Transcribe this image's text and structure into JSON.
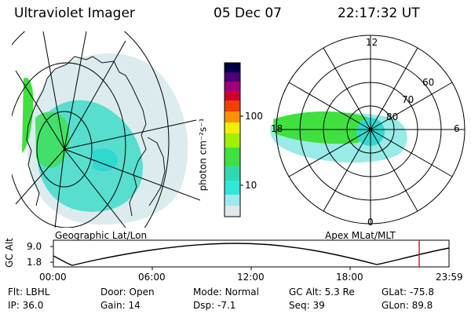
{
  "header": {
    "title": "Ultraviolet Imager",
    "date": "05 Dec 07",
    "time": "22:17:32 UT"
  },
  "geo_panel": {
    "label": "Geographic Lat/Lon"
  },
  "polar_panel": {
    "label": "Apex MLat/MLT",
    "mlt_labels": [
      "12",
      "18",
      "6",
      "0"
    ],
    "mlat_labels": [
      "60",
      "70",
      "80"
    ]
  },
  "colorbar": {
    "unit": "photon cm⁻²s⁻¹",
    "ticks": [
      "100",
      "10"
    ],
    "scale": "log",
    "colors": [
      "#000044",
      "#4a0070",
      "#a0007a",
      "#d00030",
      "#f04000",
      "#ff9000",
      "#f0f000",
      "#a0f000",
      "#30d830",
      "#30e8d0",
      "#a0e8f0",
      "#e8e8e8"
    ]
  },
  "altitude_plot": {
    "ylabel": "GC Alt",
    "yticks": [
      "9.0",
      "1.8"
    ],
    "xticks": [
      "00:00",
      "06:00",
      "12:00",
      "18:00",
      "23:59"
    ],
    "marker_time": "22:17",
    "marker_color": "#dd2222"
  },
  "info": {
    "row1": [
      {
        "key": "Flt:",
        "val": "LBHL"
      },
      {
        "key": "Door:",
        "val": "Open"
      },
      {
        "key": "Mode:",
        "val": "Normal"
      },
      {
        "key": "GC Alt:",
        "val": "5.3 Re"
      },
      {
        "key": "GLat:",
        "val": "-75.8"
      }
    ],
    "row2": [
      {
        "key": "IP:",
        "val": "36.0"
      },
      {
        "key": "Gain:",
        "val": "14"
      },
      {
        "key": "Dsp:",
        "val": "-7.1"
      },
      {
        "key": "Seq:",
        "val": "39"
      },
      {
        "key": "GLon:",
        "val": "89.8"
      }
    ]
  }
}
